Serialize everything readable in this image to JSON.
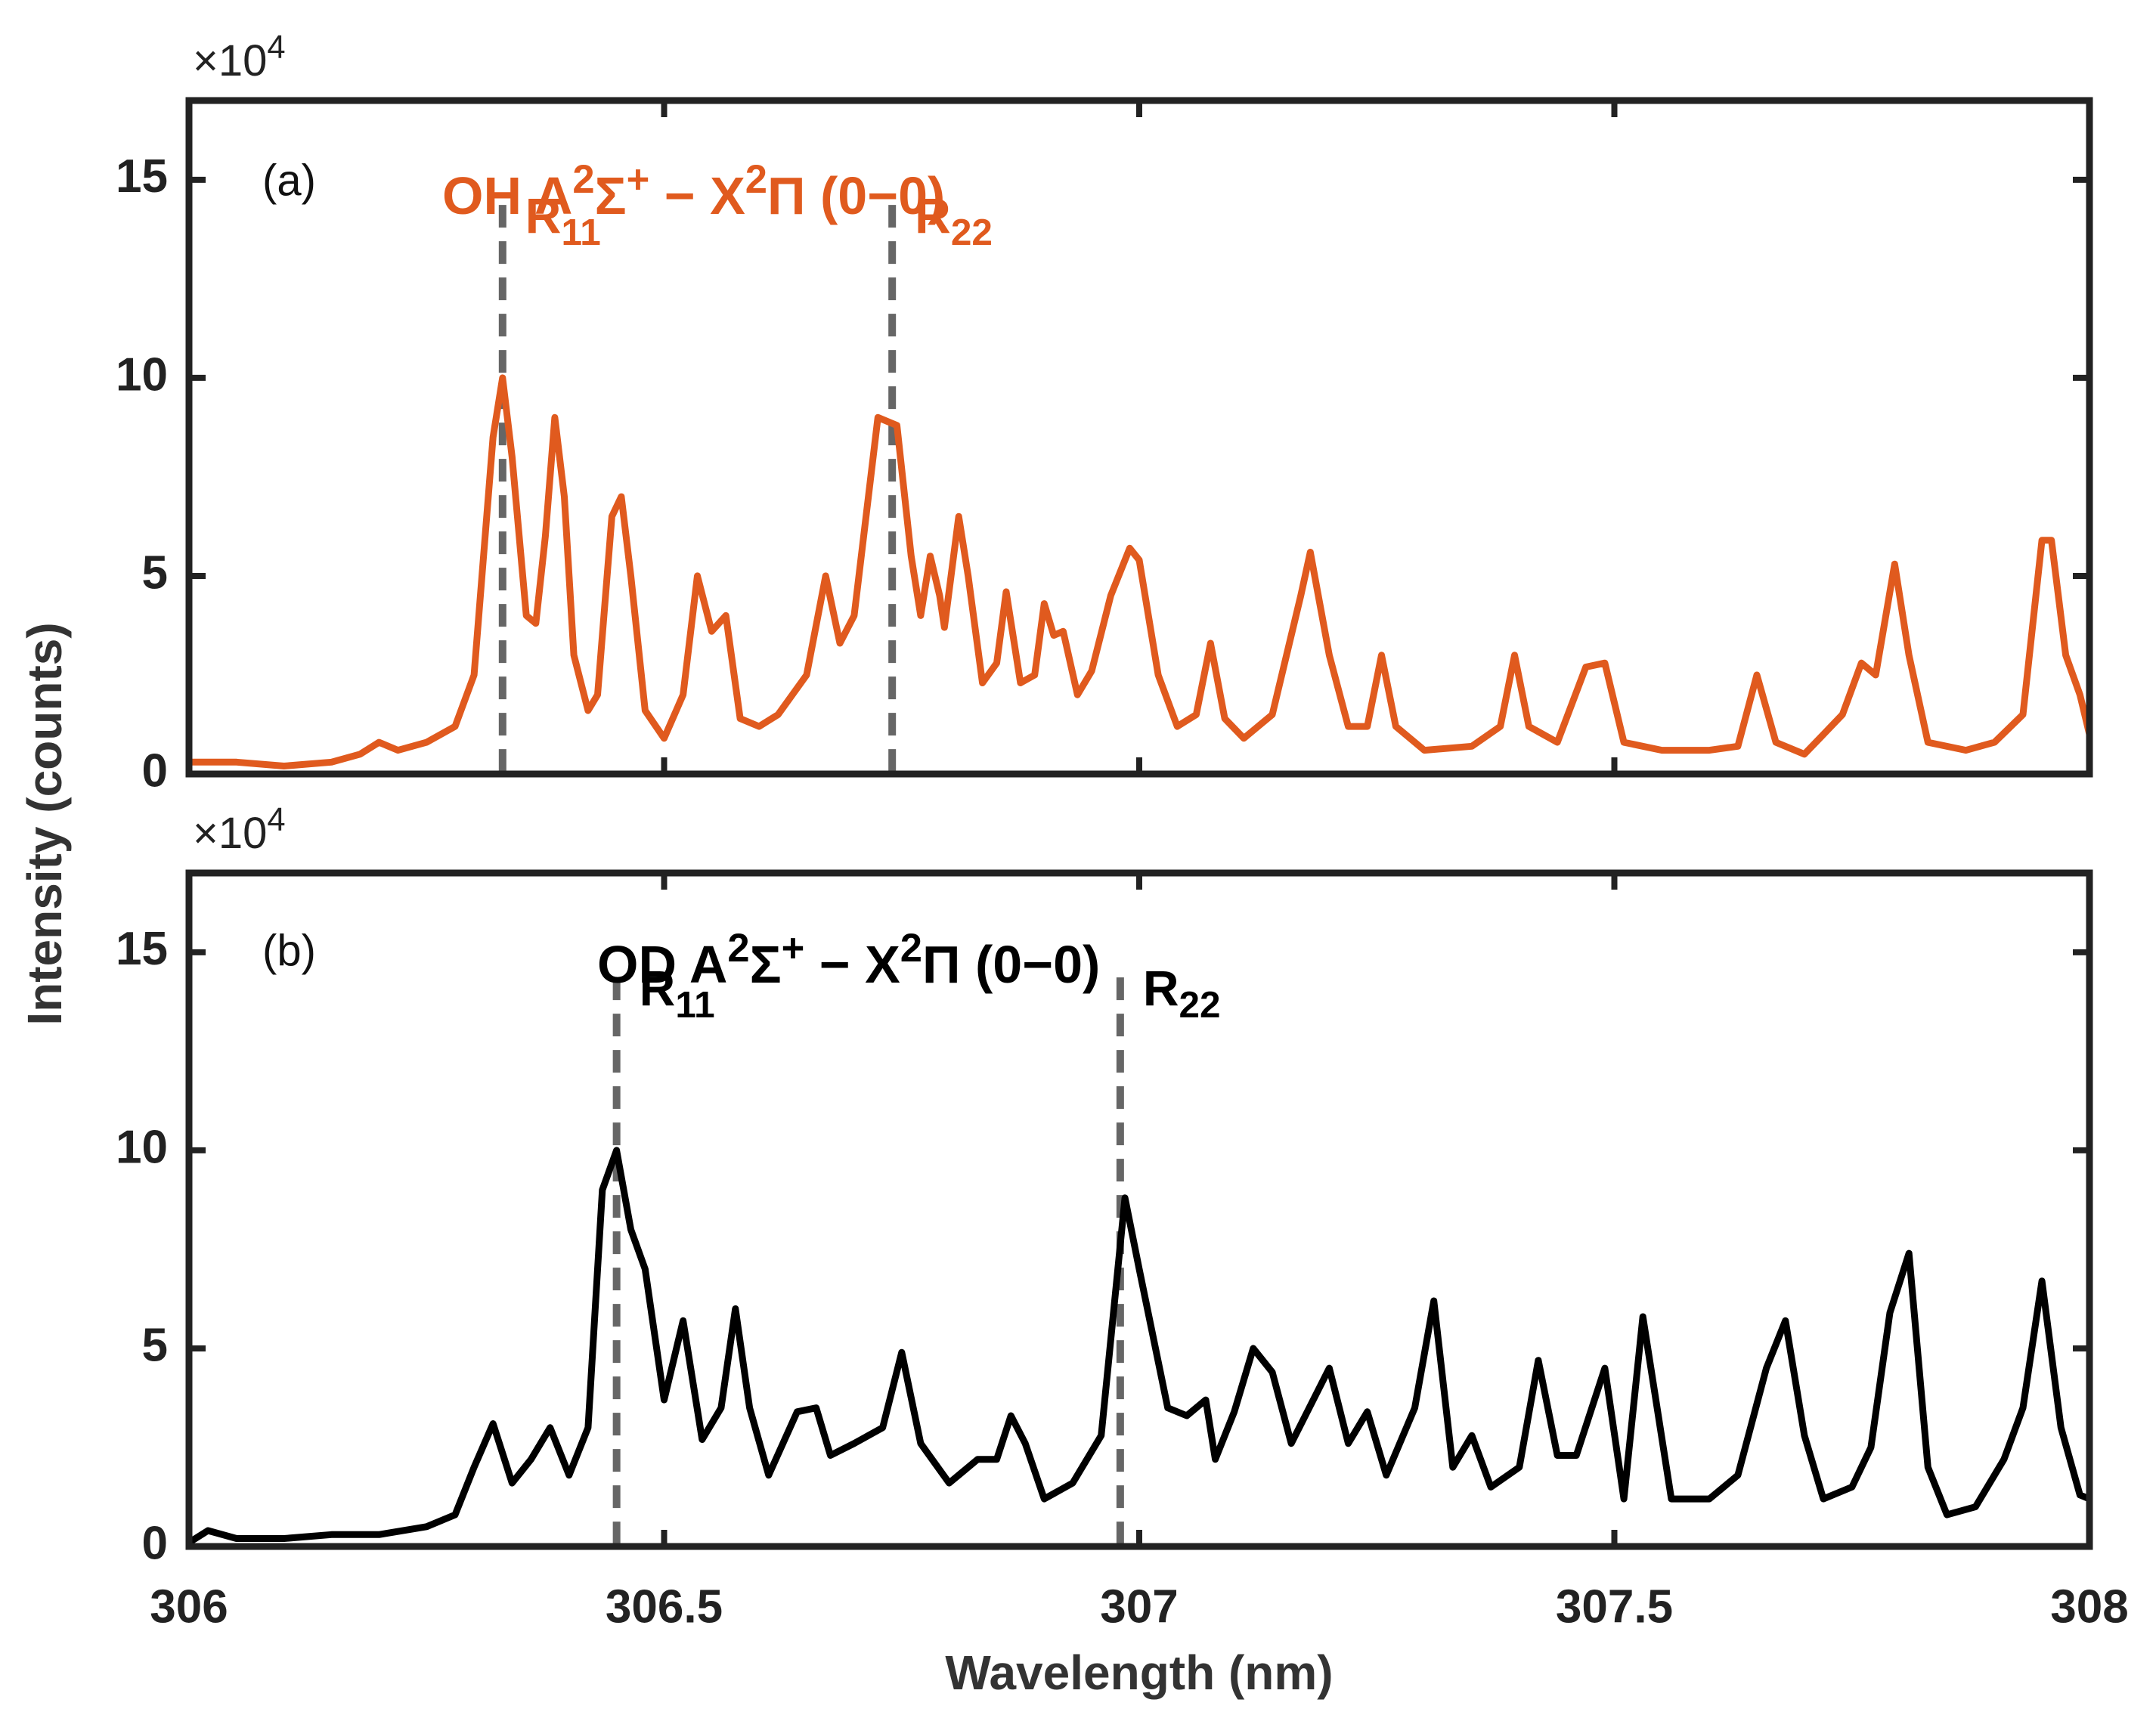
{
  "chart_data": [
    {
      "type": "line",
      "panel_label": "(a)",
      "title": [
        {
          "text": "OH A"
        },
        {
          "text": "2",
          "sup": true
        },
        {
          "text": "Σ"
        },
        {
          "text": "+",
          "sup": true
        },
        {
          "text": " − X"
        },
        {
          "text": "2",
          "sup": true
        },
        {
          "text": "Π"
        },
        {
          "text": " (0−0)"
        }
      ],
      "exponent": [
        {
          "text": "×10"
        },
        {
          "text": "4",
          "sup": true
        }
      ],
      "ylabel": "Intensity (counts)",
      "color": "#e05a1e",
      "markers": [
        {
          "x": 306.33,
          "label": [
            {
              "text": "R"
            },
            {
              "text": "11",
              "sub": true
            }
          ]
        },
        {
          "x": 306.74,
          "label": [
            {
              "text": "R"
            },
            {
              "text": "22",
              "sub": true
            }
          ]
        }
      ],
      "x": [
        306.0,
        306.05,
        306.1,
        306.15,
        306.18,
        306.2,
        306.22,
        306.25,
        306.28,
        306.3,
        306.32,
        306.33,
        306.34,
        306.355,
        306.365,
        306.375,
        306.385,
        306.395,
        306.405,
        306.42,
        306.43,
        306.445,
        306.455,
        306.465,
        306.48,
        306.5,
        306.52,
        306.535,
        306.55,
        306.565,
        306.58,
        306.6,
        306.62,
        306.65,
        306.67,
        306.685,
        306.7,
        306.725,
        306.745,
        306.76,
        306.77,
        306.78,
        306.79,
        306.795,
        306.81,
        306.82,
        306.835,
        306.85,
        306.86,
        306.875,
        306.89,
        306.9,
        306.91,
        306.92,
        306.935,
        306.95,
        306.97,
        306.99,
        307.0,
        307.02,
        307.04,
        307.06,
        307.075,
        307.09,
        307.11,
        307.14,
        307.17,
        307.18,
        307.2,
        307.22,
        307.24,
        307.255,
        307.27,
        307.3,
        307.35,
        307.38,
        307.395,
        307.41,
        307.44,
        307.47,
        307.49,
        307.51,
        307.55,
        307.6,
        307.63,
        307.65,
        307.67,
        307.7,
        307.74,
        307.76,
        307.775,
        307.795,
        307.81,
        307.83,
        307.87,
        307.9,
        307.93,
        307.95,
        307.96,
        307.975,
        307.99,
        308.0
      ],
      "values": [
        0.3,
        0.3,
        0.2,
        0.3,
        0.5,
        0.8,
        0.6,
        0.8,
        1.2,
        2.5,
        8.5,
        10,
        8,
        4,
        3.8,
        6,
        9,
        7,
        3,
        1.6,
        2,
        6.5,
        7,
        5,
        1.6,
        0.9,
        2,
        5,
        3.6,
        4,
        1.4,
        1.2,
        1.5,
        2.5,
        5,
        3.3,
        4,
        9,
        8.8,
        5.5,
        4,
        5.5,
        4.5,
        3.7,
        6.5,
        5,
        2.3,
        2.8,
        4.6,
        2.3,
        2.5,
        4.3,
        3.5,
        3.6,
        2,
        2.6,
        4.5,
        5.7,
        5.4,
        2.5,
        1.2,
        1.5,
        3.3,
        1.4,
        0.9,
        1.5,
        4.5,
        5.6,
        3,
        1.2,
        1.2,
        3,
        1.2,
        0.6,
        0.7,
        1.2,
        3,
        1.2,
        0.8,
        2.7,
        2.8,
        0.8,
        0.6,
        0.6,
        0.7,
        2.5,
        0.8,
        0.5,
        1.5,
        2.8,
        2.5,
        5.3,
        3,
        0.8,
        0.6,
        0.8,
        1.5,
        5.9,
        5.9,
        3,
        2,
        1.0
      ],
      "xlim": [
        306,
        308
      ],
      "xticks": [
        306,
        306.5,
        307,
        307.5,
        308
      ],
      "ylim": [
        0,
        17
      ],
      "yticks": [
        0,
        5,
        10,
        15
      ]
    },
    {
      "type": "line",
      "panel_label": "(b)",
      "title": [
        {
          "text": "OD A"
        },
        {
          "text": "2",
          "sup": true
        },
        {
          "text": "Σ"
        },
        {
          "text": "+",
          "sup": true
        },
        {
          "text": " − X"
        },
        {
          "text": "2",
          "sup": true
        },
        {
          "text": "Π"
        },
        {
          "text": " (0−0)"
        }
      ],
      "exponent": [
        {
          "text": "×10"
        },
        {
          "text": "4",
          "sup": true
        }
      ],
      "xlabel": "Wavelength (nm)",
      "color": "#000000",
      "markers": [
        {
          "x": 306.45,
          "label": [
            {
              "text": "R"
            },
            {
              "text": "11",
              "sub": true
            }
          ]
        },
        {
          "x": 306.98,
          "label": [
            {
              "text": "R"
            },
            {
              "text": "22",
              "sub": true
            }
          ]
        }
      ],
      "x": [
        306.0,
        306.02,
        306.05,
        306.1,
        306.15,
        306.2,
        306.25,
        306.28,
        306.3,
        306.32,
        306.34,
        306.36,
        306.38,
        306.4,
        306.42,
        306.435,
        306.45,
        306.465,
        306.48,
        306.5,
        306.52,
        306.54,
        306.56,
        306.575,
        306.59,
        306.61,
        306.64,
        306.66,
        306.675,
        306.7,
        306.73,
        306.75,
        306.77,
        306.8,
        306.83,
        306.85,
        306.865,
        306.88,
        306.9,
        306.93,
        306.96,
        306.985,
        307.0,
        307.03,
        307.05,
        307.07,
        307.08,
        307.1,
        307.12,
        307.14,
        307.16,
        307.2,
        307.22,
        307.24,
        307.26,
        307.29,
        307.31,
        307.33,
        307.35,
        307.37,
        307.4,
        307.42,
        307.44,
        307.46,
        307.49,
        307.51,
        307.53,
        307.56,
        307.6,
        307.63,
        307.66,
        307.68,
        307.7,
        307.72,
        307.75,
        307.77,
        307.79,
        307.81,
        307.83,
        307.85,
        307.88,
        307.91,
        307.93,
        307.95,
        307.97,
        307.99,
        308.0
      ],
      "values": [
        0.1,
        0.4,
        0.2,
        0.2,
        0.3,
        0.3,
        0.5,
        0.8,
        2,
        3.1,
        1.6,
        2.2,
        3,
        1.8,
        3,
        9,
        10,
        8,
        7,
        3.7,
        5.7,
        2.7,
        3.5,
        6,
        3.5,
        1.8,
        3.4,
        3.5,
        2.3,
        2.6,
        3,
        4.9,
        2.6,
        1.6,
        2.2,
        2.2,
        3.3,
        2.6,
        1.2,
        1.6,
        2.8,
        8.8,
        7,
        3.5,
        3.3,
        3.7,
        2.2,
        3.4,
        5,
        4.4,
        2.6,
        4.5,
        2.6,
        3.4,
        1.8,
        3.5,
        6.2,
        2,
        2.8,
        1.5,
        2,
        4.7,
        2.3,
        2.3,
        4.5,
        1.2,
        5.8,
        1.2,
        1.2,
        1.8,
        4.5,
        5.7,
        2.8,
        1.2,
        1.5,
        2.5,
        5.9,
        7.4,
        2,
        0.8,
        1,
        2.2,
        3.5,
        6.7,
        3,
        1.3,
        1.2
      ],
      "xlim": [
        306,
        308
      ],
      "xticks": [
        306,
        306.5,
        307,
        307.5,
        308
      ],
      "ylim": [
        0,
        17
      ],
      "yticks": [
        0,
        5,
        10,
        15
      ]
    }
  ]
}
